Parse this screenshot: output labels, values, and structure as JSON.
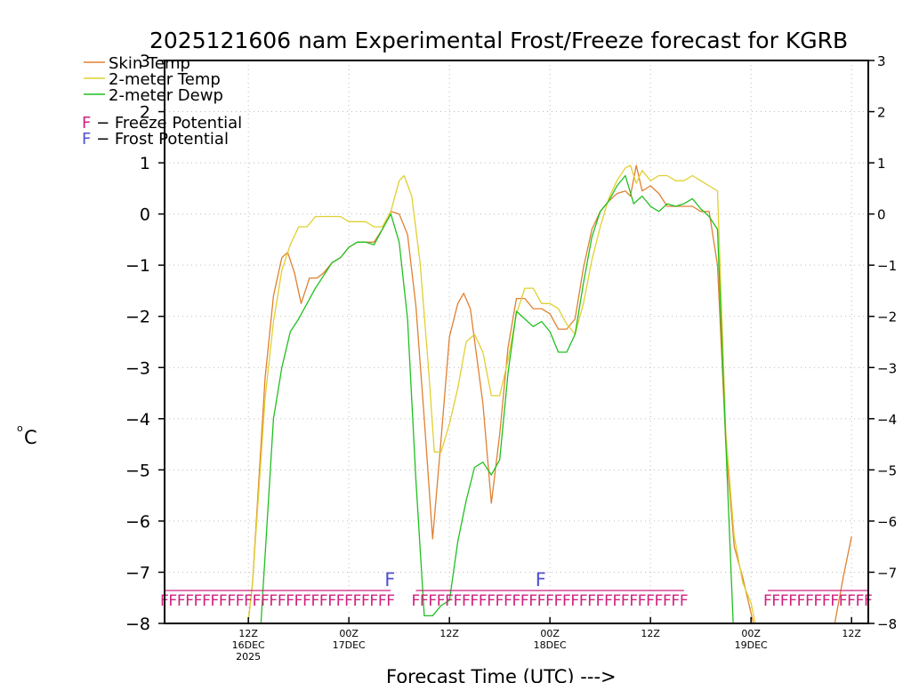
{
  "chart_data": {
    "type": "line",
    "title": "2025121606 nam Experimental Frost/Freeze forecast for KGRB",
    "xlabel": "Forecast Time (UTC) --->",
    "ylabel_unit": "o",
    "ylabel_letter": "C",
    "ylim": [
      -8,
      3
    ],
    "yticks": [
      "3",
      "2",
      "1",
      "0",
      "−1",
      "−2",
      "−3",
      "−4",
      "−5",
      "−6",
      "−7",
      "−8"
    ],
    "xlim_hours": [
      -4,
      80
    ],
    "xticks": [
      {
        "hour": 6,
        "line1": "12Z",
        "line2": "16DEC",
        "line3": "2025"
      },
      {
        "hour": 18,
        "line1": "00Z",
        "line2": "17DEC",
        "line3": ""
      },
      {
        "hour": 30,
        "line1": "12Z",
        "line2": "",
        "line3": ""
      },
      {
        "hour": 42,
        "line1": "00Z",
        "line2": "18DEC",
        "line3": ""
      },
      {
        "hour": 54,
        "line1": "12Z",
        "line2": "",
        "line3": ""
      },
      {
        "hour": 66,
        "line1": "00Z",
        "line2": "19DEC",
        "line3": ""
      },
      {
        "hour": 78,
        "line1": "12Z",
        "line2": "",
        "line3": ""
      }
    ],
    "grid": true,
    "legend_position": "top-left",
    "series": [
      {
        "name": "Skin Temp",
        "color": "#e08030",
        "points": [
          [
            5.3,
            -9
          ],
          [
            6.5,
            -7.2
          ],
          [
            8,
            -3.2
          ],
          [
            9,
            -1.6
          ],
          [
            10,
            -0.85
          ],
          [
            10.7,
            -0.75
          ],
          [
            11.5,
            -1.15
          ],
          [
            12.3,
            -1.75
          ],
          [
            13.3,
            -1.25
          ],
          [
            14.2,
            -1.25
          ],
          [
            15,
            -1.15
          ],
          [
            16,
            -0.95
          ],
          [
            17,
            -0.85
          ],
          [
            18,
            -0.65
          ],
          [
            19,
            -0.55
          ],
          [
            20,
            -0.55
          ],
          [
            21,
            -0.55
          ],
          [
            22,
            -0.3
          ],
          [
            23,
            0.05
          ],
          [
            24,
            0
          ],
          [
            25,
            -0.4
          ],
          [
            26,
            -1.8
          ],
          [
            27,
            -4
          ],
          [
            28,
            -6.35
          ],
          [
            29,
            -4.4
          ],
          [
            30,
            -2.4
          ],
          [
            31,
            -1.75
          ],
          [
            31.7,
            -1.55
          ],
          [
            32.5,
            -1.85
          ],
          [
            34,
            -3.7
          ],
          [
            35,
            -5.65
          ],
          [
            36,
            -4.3
          ],
          [
            37,
            -2.6
          ],
          [
            38,
            -1.65
          ],
          [
            39,
            -1.65
          ],
          [
            40,
            -1.85
          ],
          [
            41,
            -1.85
          ],
          [
            42,
            -1.95
          ],
          [
            43,
            -2.25
          ],
          [
            44,
            -2.25
          ],
          [
            45,
            -2.05
          ],
          [
            46,
            -1.05
          ],
          [
            47,
            -0.3
          ],
          [
            48,
            0.05
          ],
          [
            49,
            0.25
          ],
          [
            50,
            0.4
          ],
          [
            51,
            0.45
          ],
          [
            51.6,
            0.35
          ],
          [
            52.3,
            0.95
          ],
          [
            53,
            0.45
          ],
          [
            54,
            0.55
          ],
          [
            55,
            0.4
          ],
          [
            56,
            0.15
          ],
          [
            57,
            0.15
          ],
          [
            58,
            0.15
          ],
          [
            59,
            0.15
          ],
          [
            60,
            0.05
          ],
          [
            61,
            0.05
          ],
          [
            62,
            -1
          ],
          [
            63,
            -4.5
          ],
          [
            64,
            -6.5
          ],
          [
            65,
            -7.1
          ],
          [
            66,
            -7.8
          ],
          [
            67,
            -8.5
          ],
          [
            72,
            -9
          ],
          [
            76,
            -8
          ],
          [
            77,
            -7.1
          ],
          [
            78,
            -6.3
          ]
        ]
      },
      {
        "name": "2-meter Temp",
        "color": "#e0d030",
        "points": [
          [
            5.3,
            -9
          ],
          [
            6.5,
            -7.2
          ],
          [
            8,
            -3.6
          ],
          [
            9,
            -2.1
          ],
          [
            10,
            -1.1
          ],
          [
            11,
            -0.6
          ],
          [
            12,
            -0.25
          ],
          [
            13,
            -0.25
          ],
          [
            14,
            -0.05
          ],
          [
            15,
            -0.05
          ],
          [
            16,
            -0.05
          ],
          [
            17,
            -0.05
          ],
          [
            18,
            -0.15
          ],
          [
            19,
            -0.15
          ],
          [
            20,
            -0.15
          ],
          [
            21,
            -0.25
          ],
          [
            22,
            -0.25
          ],
          [
            23,
            0.05
          ],
          [
            24,
            0.65
          ],
          [
            24.6,
            0.75
          ],
          [
            25.5,
            0.35
          ],
          [
            26.5,
            -0.95
          ],
          [
            27.5,
            -3
          ],
          [
            28.2,
            -4.65
          ],
          [
            29,
            -4.65
          ],
          [
            30,
            -4.1
          ],
          [
            31,
            -3.4
          ],
          [
            32,
            -2.5
          ],
          [
            33,
            -2.35
          ],
          [
            34,
            -2.7
          ],
          [
            35,
            -3.55
          ],
          [
            36,
            -3.55
          ],
          [
            37,
            -2.85
          ],
          [
            38,
            -1.95
          ],
          [
            39,
            -1.45
          ],
          [
            40,
            -1.45
          ],
          [
            41,
            -1.75
          ],
          [
            42,
            -1.75
          ],
          [
            43,
            -1.85
          ],
          [
            44,
            -2.15
          ],
          [
            45,
            -2.35
          ],
          [
            46,
            -1.75
          ],
          [
            47,
            -0.9
          ],
          [
            48,
            -0.25
          ],
          [
            49,
            0.3
          ],
          [
            50,
            0.65
          ],
          [
            51,
            0.9
          ],
          [
            51.6,
            0.95
          ],
          [
            52.3,
            0.6
          ],
          [
            53,
            0.85
          ],
          [
            54,
            0.65
          ],
          [
            55,
            0.75
          ],
          [
            56,
            0.75
          ],
          [
            57,
            0.65
          ],
          [
            58,
            0.65
          ],
          [
            59,
            0.75
          ],
          [
            60,
            0.65
          ],
          [
            61,
            0.55
          ],
          [
            62,
            0.45
          ],
          [
            63,
            -4.3
          ],
          [
            64,
            -6.3
          ],
          [
            65,
            -7.2
          ],
          [
            66,
            -7.6
          ],
          [
            67,
            -8.4
          ]
        ]
      },
      {
        "name": "2-meter Dewp",
        "color": "#20c020",
        "points": [
          [
            6,
            -9.5
          ],
          [
            7.5,
            -8
          ],
          [
            9,
            -4
          ],
          [
            10,
            -3
          ],
          [
            11,
            -2.3
          ],
          [
            12,
            -2.05
          ],
          [
            13,
            -1.75
          ],
          [
            14,
            -1.45
          ],
          [
            15,
            -1.2
          ],
          [
            16,
            -0.95
          ],
          [
            17,
            -0.85
          ],
          [
            18,
            -0.65
          ],
          [
            19,
            -0.55
          ],
          [
            20,
            -0.55
          ],
          [
            21,
            -0.6
          ],
          [
            22,
            -0.3
          ],
          [
            23,
            0
          ],
          [
            24,
            -0.55
          ],
          [
            25,
            -2.05
          ],
          [
            26,
            -5.2
          ],
          [
            27,
            -7.85
          ],
          [
            28,
            -7.85
          ],
          [
            29,
            -7.65
          ],
          [
            30,
            -7.55
          ],
          [
            31,
            -6.4
          ],
          [
            32,
            -5.6
          ],
          [
            33,
            -4.95
          ],
          [
            34,
            -4.85
          ],
          [
            35,
            -5.1
          ],
          [
            36,
            -4.8
          ],
          [
            37,
            -3.1
          ],
          [
            38,
            -1.9
          ],
          [
            39,
            -2.05
          ],
          [
            40,
            -2.2
          ],
          [
            41,
            -2.1
          ],
          [
            42,
            -2.3
          ],
          [
            43,
            -2.7
          ],
          [
            44,
            -2.7
          ],
          [
            45,
            -2.35
          ],
          [
            46,
            -1.35
          ],
          [
            47,
            -0.45
          ],
          [
            48,
            0.05
          ],
          [
            49,
            0.25
          ],
          [
            50,
            0.55
          ],
          [
            51,
            0.75
          ],
          [
            52,
            0.2
          ],
          [
            53,
            0.35
          ],
          [
            54,
            0.15
          ],
          [
            55,
            0.05
          ],
          [
            56,
            0.2
          ],
          [
            57,
            0.15
          ],
          [
            58,
            0.2
          ],
          [
            59,
            0.3
          ],
          [
            60,
            0.1
          ],
          [
            61,
            -0.05
          ],
          [
            62,
            -0.3
          ],
          [
            63,
            -4.5
          ],
          [
            64,
            -8.5
          ]
        ]
      }
    ],
    "potential_legend": [
      {
        "letter": "F",
        "text": " − Freeze Potential",
        "letter_color": "#d02080"
      },
      {
        "letter": "F",
        "text": " − Frost Potential",
        "letter_color": "#5050d0"
      }
    ],
    "freeze_marker": {
      "letter": "F",
      "color": "#d02080"
    },
    "freeze_periods_hours": [
      [
        -4,
        23
      ],
      [
        26,
        58
      ],
      [
        68,
        80
      ]
    ],
    "frost_marker": {
      "letter": "F",
      "color": "#5050d0"
    },
    "frost_marks_hours": [
      23,
      41
    ]
  }
}
